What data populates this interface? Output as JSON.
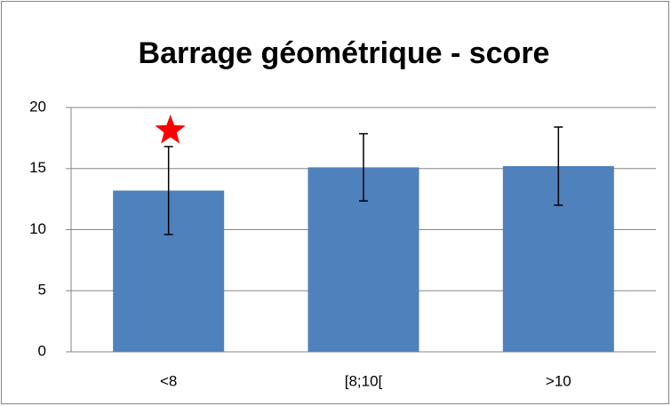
{
  "chart_data": {
    "type": "bar",
    "title": "Barrage géométrique - score",
    "categories": [
      "<8",
      "[8;10[",
      ">10"
    ],
    "values": [
      13.2,
      15.1,
      15.2
    ],
    "errors": [
      3.6,
      2.75,
      3.2
    ],
    "color": "#4f81bd",
    "ylim": [
      0,
      20
    ],
    "yticks": [
      0,
      5,
      10,
      15,
      20
    ],
    "grid": true
  }
}
